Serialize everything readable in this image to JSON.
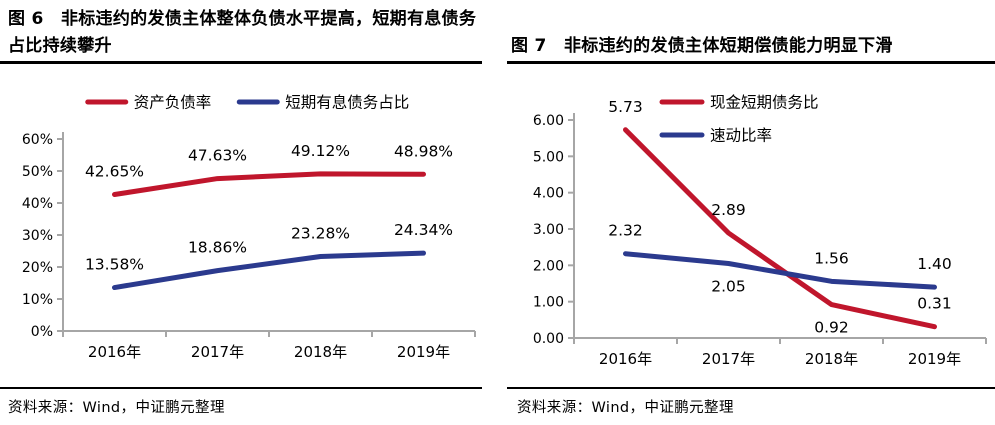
{
  "page": {
    "background": "#ffffff"
  },
  "colors": {
    "red": "#C0162C",
    "blue": "#2B3A8E",
    "axis": "#A6A6A6",
    "text": "#000000"
  },
  "panels": [
    {
      "id": "figure-6",
      "title": "图 6　非标违约的发债主体整体负债水平提高，短期有息债务占比持续攀升",
      "source": "资料来源：Wind，中证鹏元整理"
    },
    {
      "id": "figure-7",
      "title": "图 7　非标违约的发债主体短期偿债能力明显下滑",
      "source": "资料来源：Wind，中证鹏元整理"
    }
  ],
  "chart_data": [
    {
      "type": "line",
      "title": "图 6 非标违约的发债主体整体负债水平提高，短期有息债务占比持续攀升",
      "categories": [
        "2016年",
        "2017年",
        "2018年",
        "2019年"
      ],
      "series": [
        {
          "name": "资产负债率",
          "color_key": "red",
          "values": [
            42.65,
            47.63,
            49.12,
            48.98
          ],
          "label_side": [
            "above",
            "above",
            "above",
            "above"
          ]
        },
        {
          "name": "短期有息债务占比",
          "color_key": "blue",
          "values": [
            13.58,
            18.86,
            23.28,
            24.34
          ],
          "label_side": [
            "above",
            "above",
            "above",
            "above"
          ]
        }
      ],
      "value_format": "percent",
      "xlabel": "",
      "ylabel": "",
      "ylim": [
        0,
        60
      ],
      "ytick_step": 10,
      "ytick_labels": [
        "0%",
        "10%",
        "20%",
        "30%",
        "40%",
        "50%",
        "60%"
      ],
      "grid": false,
      "legend_position": "top-center"
    },
    {
      "type": "line",
      "title": "图 7 非标违约的发债主体短期偿债能力明显下滑",
      "categories": [
        "2016年",
        "2017年",
        "2018年",
        "2019年"
      ],
      "series": [
        {
          "name": "现金短期债务比",
          "color_key": "red",
          "values": [
            5.73,
            2.89,
            0.92,
            0.31
          ],
          "label_side": [
            "above",
            "above",
            "below",
            "above"
          ]
        },
        {
          "name": "速动比率",
          "color_key": "blue",
          "values": [
            2.32,
            2.05,
            1.56,
            1.4
          ],
          "label_side": [
            "above",
            "below",
            "above",
            "above"
          ]
        }
      ],
      "value_format": "fixed2",
      "xlabel": "",
      "ylabel": "",
      "ylim": [
        0,
        6
      ],
      "ytick_step": 1,
      "ytick_labels": [
        "0.00",
        "1.00",
        "2.00",
        "3.00",
        "4.00",
        "5.00",
        "6.00"
      ],
      "grid": false,
      "legend_position": "top-left-inset"
    }
  ]
}
